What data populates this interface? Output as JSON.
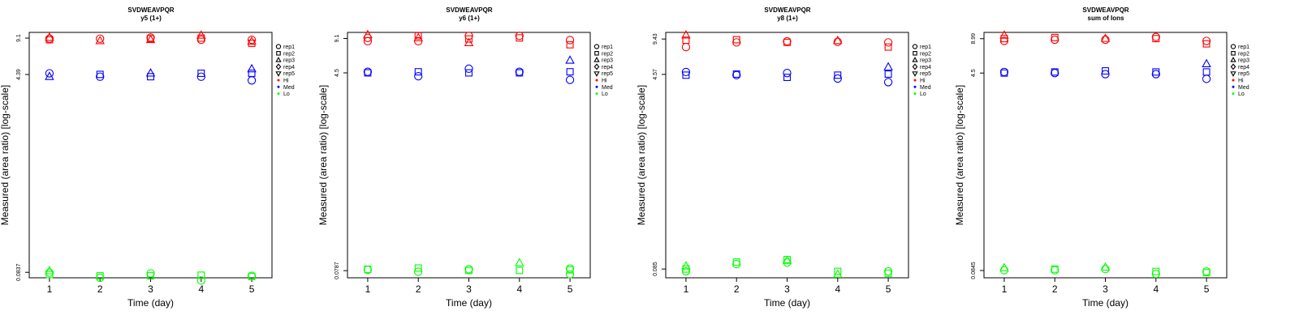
{
  "colors": {
    "Hi": "#ff0000",
    "Med": "#0000ff",
    "Lo": "#00ff00",
    "axis": "#000000"
  },
  "legend": {
    "position": "right",
    "shapes": [
      {
        "label": "rep1",
        "symbol": "circle"
      },
      {
        "label": "rep2",
        "symbol": "square"
      },
      {
        "label": "rep3",
        "symbol": "triangle-up"
      },
      {
        "label": "rep4",
        "symbol": "diamond"
      },
      {
        "label": "rep5",
        "symbol": "triangle-down"
      }
    ],
    "colors": [
      {
        "label": "Hi",
        "color": "#ff0000"
      },
      {
        "label": "Med",
        "color": "#0000ff"
      },
      {
        "label": "Lo",
        "color": "#00ff00"
      }
    ]
  },
  "chart_data": [
    {
      "type": "scatter",
      "title": "SVDWEAVPQR",
      "subtitle": "y5 (1+)",
      "xlabel": "Time (day)",
      "ylabel": "Measured (area ratio) [log-scale]",
      "log_y": true,
      "ylim": [
        0.075,
        10.2
      ],
      "grid": false,
      "x_ticks": [
        1,
        2,
        3,
        4,
        5
      ],
      "y_ticks": [
        0.0837,
        4.39,
        9.1
      ],
      "y_tick_labels": [
        "0.0837",
        "4.39",
        "9.1"
      ],
      "series": [
        {
          "level": "Hi",
          "points": [
            [
              1,
              9.0,
              "circle"
            ],
            [
              1,
              8.8,
              "square"
            ],
            [
              1,
              9.2,
              "triangle-up"
            ],
            [
              2,
              9.0,
              "circle"
            ],
            [
              2,
              8.6,
              "triangle-up"
            ],
            [
              3,
              9.2,
              "circle"
            ],
            [
              3,
              9.0,
              "square"
            ],
            [
              3,
              8.8,
              "triangle-up"
            ],
            [
              4,
              9.6,
              "triangle-up"
            ],
            [
              4,
              9.1,
              "square"
            ],
            [
              4,
              8.8,
              "circle"
            ],
            [
              5,
              8.8,
              "circle"
            ],
            [
              5,
              8.2,
              "square"
            ],
            [
              5,
              8.5,
              "triangle-up"
            ]
          ]
        },
        {
          "level": "Med",
          "points": [
            [
              1,
              4.5,
              "circle"
            ],
            [
              1,
              4.2,
              "triangle-up"
            ],
            [
              2,
              4.4,
              "square"
            ],
            [
              2,
              4.2,
              "circle"
            ],
            [
              3,
              4.5,
              "triangle-up"
            ],
            [
              3,
              4.2,
              "square"
            ],
            [
              4,
              4.5,
              "square"
            ],
            [
              4,
              4.2,
              "circle"
            ],
            [
              5,
              4.9,
              "triangle-up"
            ],
            [
              5,
              4.5,
              "square"
            ],
            [
              5,
              3.9,
              "circle"
            ]
          ]
        },
        {
          "level": "Lo",
          "points": [
            [
              1,
              0.086,
              "triangle-up"
            ],
            [
              1,
              0.08,
              "square"
            ],
            [
              1,
              0.083,
              "circle"
            ],
            [
              2,
              0.075,
              "circle"
            ],
            [
              2,
              0.078,
              "square"
            ],
            [
              3,
              0.082,
              "circle"
            ],
            [
              3,
              0.078,
              "square"
            ],
            [
              4,
              0.079,
              "square"
            ],
            [
              4,
              0.071,
              "circle"
            ],
            [
              5,
              0.078,
              "circle"
            ],
            [
              5,
              0.077,
              "square"
            ]
          ]
        }
      ]
    },
    {
      "type": "scatter",
      "title": "SVDWEAVPQR",
      "subtitle": "y6 (1+)",
      "xlabel": "Time (day)",
      "ylabel": "Measured (area ratio) [log-scale]",
      "log_y": true,
      "ylim": [
        0.068,
        10.3
      ],
      "grid": false,
      "x_ticks": [
        1,
        2,
        3,
        4,
        5
      ],
      "y_ticks": [
        0.0787,
        4.5,
        9.1
      ],
      "y_tick_labels": [
        "0.0787",
        "4.5",
        "9.1"
      ],
      "series": [
        {
          "level": "Hi",
          "points": [
            [
              1,
              9.8,
              "triangle-up"
            ],
            [
              1,
              9.2,
              "circle"
            ],
            [
              1,
              8.6,
              "circle"
            ],
            [
              2,
              9.6,
              "square"
            ],
            [
              2,
              9.2,
              "triangle-up"
            ],
            [
              2,
              8.6,
              "circle"
            ],
            [
              3,
              9.6,
              "circle"
            ],
            [
              3,
              9.0,
              "square"
            ],
            [
              3,
              8.3,
              "triangle-up"
            ],
            [
              4,
              9.6,
              "circle"
            ],
            [
              4,
              9.2,
              "square"
            ],
            [
              5,
              8.8,
              "circle"
            ],
            [
              5,
              8.0,
              "square"
            ]
          ]
        },
        {
          "level": "Med",
          "points": [
            [
              1,
              4.6,
              "circle"
            ],
            [
              1,
              4.5,
              "square"
            ],
            [
              2,
              4.6,
              "square"
            ],
            [
              2,
              4.2,
              "circle"
            ],
            [
              3,
              4.9,
              "circle"
            ],
            [
              3,
              4.5,
              "square"
            ],
            [
              4,
              4.6,
              "circle"
            ],
            [
              4,
              4.5,
              "square"
            ],
            [
              5,
              5.8,
              "triangle-up"
            ],
            [
              5,
              4.6,
              "square"
            ],
            [
              5,
              3.9,
              "circle"
            ]
          ]
        },
        {
          "level": "Lo",
          "points": [
            [
              1,
              0.08,
              "circle"
            ],
            [
              1,
              0.081,
              "square"
            ],
            [
              2,
              0.083,
              "square"
            ],
            [
              2,
              0.077,
              "circle"
            ],
            [
              3,
              0.081,
              "circle"
            ],
            [
              3,
              0.079,
              "square"
            ],
            [
              4,
              0.092,
              "triangle-up"
            ],
            [
              4,
              0.079,
              "square"
            ],
            [
              5,
              0.082,
              "circle"
            ],
            [
              5,
              0.08,
              "square"
            ],
            [
              5,
              0.073,
              "circle"
            ]
          ]
        }
      ]
    },
    {
      "type": "scatter",
      "title": "SVDWEAVPQR",
      "subtitle": "y8 (1+)",
      "xlabel": "Time (day)",
      "ylabel": "Measured (area ratio) [log-scale]",
      "log_y": true,
      "ylim": [
        0.071,
        10.8
      ],
      "grid": false,
      "x_ticks": [
        1,
        2,
        3,
        4,
        5
      ],
      "y_ticks": [
        0.085,
        4.57,
        9.43
      ],
      "y_tick_labels": [
        "0.085",
        "4.57",
        "9.43"
      ],
      "series": [
        {
          "level": "Hi",
          "points": [
            [
              1,
              10.2,
              "triangle-up"
            ],
            [
              1,
              9.2,
              "square"
            ],
            [
              1,
              8.0,
              "circle"
            ],
            [
              2,
              9.3,
              "square"
            ],
            [
              2,
              8.8,
              "circle"
            ],
            [
              3,
              9.0,
              "circle"
            ],
            [
              3,
              8.8,
              "square"
            ],
            [
              4,
              9.1,
              "triangle-up"
            ],
            [
              4,
              8.9,
              "circle"
            ],
            [
              5,
              8.8,
              "circle"
            ],
            [
              5,
              8.0,
              "square"
            ]
          ]
        },
        {
          "level": "Med",
          "points": [
            [
              1,
              4.8,
              "circle"
            ],
            [
              1,
              4.5,
              "square"
            ],
            [
              2,
              4.6,
              "square"
            ],
            [
              2,
              4.5,
              "circle"
            ],
            [
              3,
              4.7,
              "circle"
            ],
            [
              3,
              4.3,
              "square"
            ],
            [
              4,
              4.5,
              "square"
            ],
            [
              4,
              4.2,
              "circle"
            ],
            [
              5,
              5.3,
              "triangle-up"
            ],
            [
              5,
              4.6,
              "square"
            ],
            [
              5,
              3.9,
              "circle"
            ]
          ]
        },
        {
          "level": "Lo",
          "points": [
            [
              1,
              0.09,
              "triangle-up"
            ],
            [
              1,
              0.085,
              "square"
            ],
            [
              1,
              0.081,
              "circle"
            ],
            [
              2,
              0.098,
              "square"
            ],
            [
              2,
              0.094,
              "circle"
            ],
            [
              3,
              0.103,
              "square"
            ],
            [
              3,
              0.101,
              "triangle-up"
            ],
            [
              3,
              0.097,
              "circle"
            ],
            [
              4,
              0.081,
              "square"
            ],
            [
              4,
              0.076,
              "triangle-up"
            ],
            [
              5,
              0.081,
              "circle"
            ],
            [
              5,
              0.078,
              "square"
            ]
          ]
        }
      ]
    },
    {
      "type": "scatter",
      "title": "SVDWEAVPQR",
      "subtitle": "sum of Ions",
      "xlabel": "Time (day)",
      "ylabel": "Measured (area ratio) [log-scale]",
      "log_y": true,
      "ylim": [
        0.073,
        10.2
      ],
      "grid": false,
      "x_ticks": [
        1,
        2,
        3,
        4,
        5
      ],
      "y_ticks": [
        0.0845,
        4.5,
        8.99
      ],
      "y_tick_labels": [
        "0.0845",
        "4.5",
        "8.99"
      ],
      "series": [
        {
          "level": "Hi",
          "points": [
            [
              1,
              9.6,
              "triangle-up"
            ],
            [
              1,
              9.0,
              "square"
            ],
            [
              1,
              8.6,
              "circle"
            ],
            [
              2,
              9.2,
              "square"
            ],
            [
              2,
              8.8,
              "circle"
            ],
            [
              3,
              9.0,
              "triangle-up"
            ],
            [
              3,
              8.8,
              "circle"
            ],
            [
              4,
              9.3,
              "circle"
            ],
            [
              4,
              9.0,
              "square"
            ],
            [
              5,
              8.6,
              "circle"
            ],
            [
              5,
              8.1,
              "square"
            ]
          ]
        },
        {
          "level": "Med",
          "points": [
            [
              1,
              4.6,
              "circle"
            ],
            [
              1,
              4.5,
              "square"
            ],
            [
              2,
              4.6,
              "square"
            ],
            [
              2,
              4.5,
              "circle"
            ],
            [
              3,
              4.7,
              "square"
            ],
            [
              3,
              4.4,
              "circle"
            ],
            [
              4,
              4.6,
              "square"
            ],
            [
              4,
              4.4,
              "circle"
            ],
            [
              5,
              5.4,
              "triangle-up"
            ],
            [
              5,
              4.6,
              "square"
            ],
            [
              5,
              4.0,
              "circle"
            ]
          ]
        },
        {
          "level": "Lo",
          "points": [
            [
              1,
              0.089,
              "triangle-up"
            ],
            [
              1,
              0.085,
              "circle"
            ],
            [
              2,
              0.087,
              "square"
            ],
            [
              2,
              0.085,
              "circle"
            ],
            [
              3,
              0.09,
              "triangle-up"
            ],
            [
              3,
              0.087,
              "circle"
            ],
            [
              4,
              0.083,
              "square"
            ],
            [
              4,
              0.079,
              "circle"
            ],
            [
              5,
              0.083,
              "circle"
            ],
            [
              5,
              0.081,
              "square"
            ]
          ]
        }
      ]
    }
  ]
}
